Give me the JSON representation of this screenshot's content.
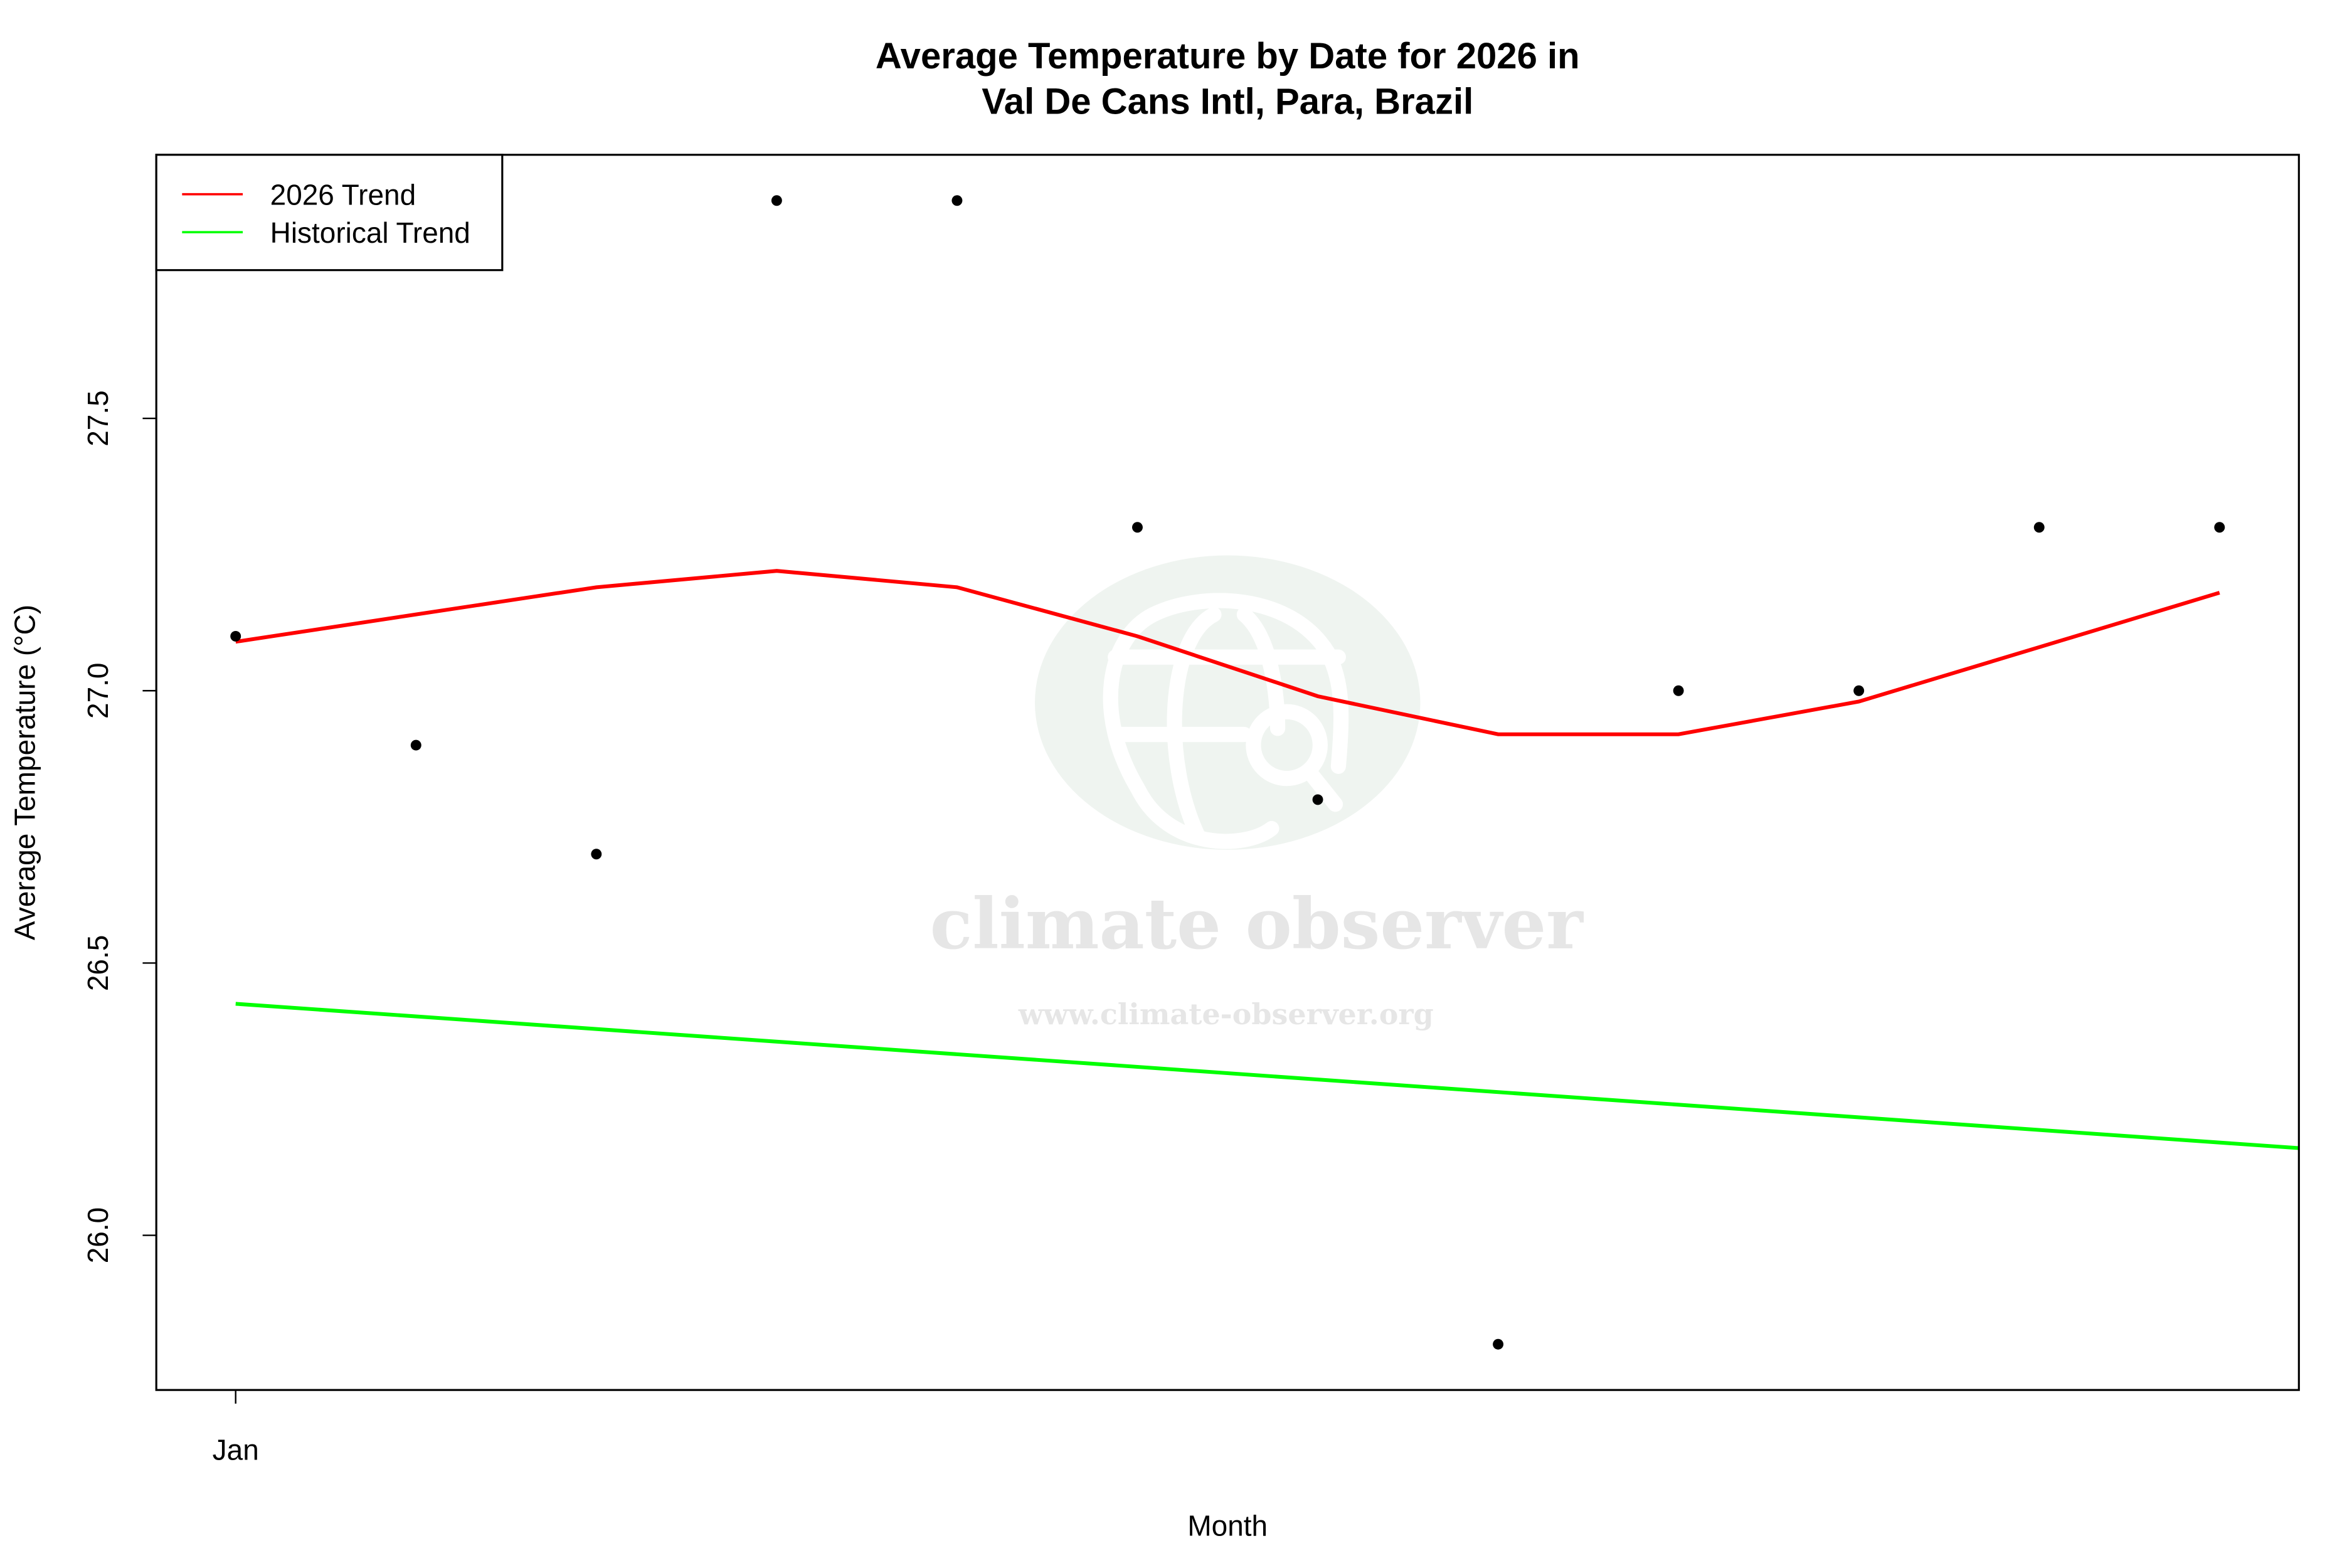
{
  "chart_data": {
    "type": "line",
    "title": "Average Temperature by Date for 2026 in",
    "subtitle": "Val De Cans Intl, Para, Brazil",
    "xlabel": "Month",
    "ylabel": "Average Temperature (°C)",
    "x": [
      1,
      2,
      3,
      4,
      5,
      6,
      7,
      8,
      9,
      10,
      11,
      12
    ],
    "x_tick_labels": [
      {
        "x": 1,
        "label": "Jan"
      }
    ],
    "xlim": [
      0.56,
      12.44
    ],
    "ylim": [
      25.716,
      27.984
    ],
    "y_ticks": [
      "26.0",
      "26.5",
      "27.0",
      "27.5"
    ],
    "grid": false,
    "legend_position": "top-left",
    "points": {
      "values": [
        27.1,
        26.9,
        26.7,
        27.9,
        27.9,
        27.3,
        26.8,
        25.8,
        27.0,
        27.0,
        27.3,
        27.3
      ],
      "color": "#000000"
    },
    "series": [
      {
        "name": "2026 Trend",
        "color": "#ff0000",
        "values": [
          27.09,
          27.14,
          27.19,
          27.22,
          27.19,
          27.1,
          26.99,
          26.92,
          26.92,
          26.98,
          27.08,
          27.18
        ]
      },
      {
        "name": "Historical Trend",
        "color": "#00ff00",
        "x": [
          1,
          12.44
        ],
        "values": [
          26.425,
          26.16
        ]
      }
    ]
  },
  "watermark": {
    "name": "climate observer",
    "url": "www.climate-observer.org"
  }
}
